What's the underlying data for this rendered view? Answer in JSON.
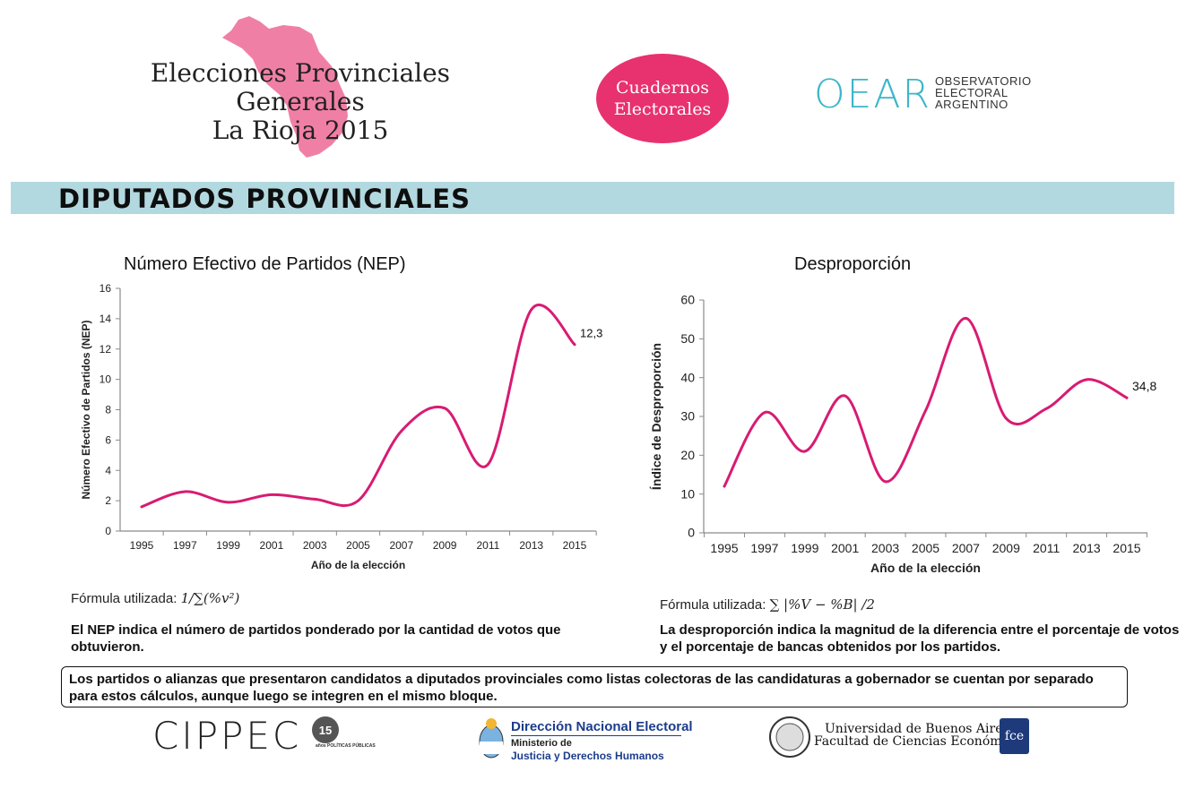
{
  "header": {
    "title_line1": "Elecciones Provinciales Generales",
    "title_line2": "La Rioja 2015",
    "badge_line1": "Cuadernos",
    "badge_line2": "Electorales",
    "oear_mark": "OEAR",
    "oear_line1": "OBSERVATORIO",
    "oear_line2": "ELECTORAL",
    "oear_line3": "ARGENTINO"
  },
  "section_title": "DIPUTADOS PROVINCIALES",
  "chart_data": [
    {
      "type": "line",
      "title": "Número Efectivo de Partidos (NEP)",
      "xlabel": "Año de la elección",
      "ylabel": "Número Efectivo de Partidos (NEP)",
      "ylim": [
        0,
        16
      ],
      "yticks": [
        0,
        2,
        4,
        6,
        8,
        10,
        12,
        14,
        16
      ],
      "x": [
        "1995",
        "1997",
        "1999",
        "2001",
        "2003",
        "2005",
        "2007",
        "2009",
        "2011",
        "2013",
        "2015"
      ],
      "series": [
        {
          "name": "NEP",
          "values": [
            1.6,
            2.6,
            1.9,
            2.4,
            2.1,
            2.0,
            6.6,
            8.1,
            4.4,
            14.6,
            12.3
          ]
        }
      ],
      "last_label": "12,3",
      "color": "#d81b72"
    },
    {
      "type": "line",
      "title": "Desproporción",
      "xlabel": "Año de la elección",
      "ylabel": "Índice de Desproporción",
      "ylim": [
        0,
        60
      ],
      "yticks": [
        0,
        10,
        20,
        30,
        40,
        50,
        60
      ],
      "x": [
        "1995",
        "1997",
        "1999",
        "2001",
        "2003",
        "2005",
        "2007",
        "2009",
        "2011",
        "2013",
        "2015"
      ],
      "series": [
        {
          "name": "Desproporción",
          "values": [
            12.0,
            31.0,
            21.0,
            35.3,
            13.2,
            31.5,
            55.3,
            29.5,
            32.0,
            39.5,
            34.8
          ]
        }
      ],
      "last_label": "34,8",
      "color": "#d81b72"
    }
  ],
  "left_panel": {
    "formula_label": "Fórmula utilizada:",
    "formula": "1/∑(%v²)",
    "description": "El NEP indica el número de partidos ponderado por la cantidad de votos que obtuvieron."
  },
  "right_panel": {
    "formula_label": "Fórmula utilizada:",
    "formula": "∑ |%V − %B| /2",
    "description": "La desproporción indica la magnitud de la diferencia entre el porcentaje de votos y el porcentaje de bancas obtenidos por los partidos."
  },
  "note": "Los partidos o alianzas que presentaron candidatos a diputados provinciales como listas colectoras de las candidaturas a gobernador se cuentan por separado para estos cálculos, aunque luego se integren en el mismo bloque.",
  "footer": {
    "cippec": "CIPPEC",
    "cippec_badge": "15",
    "cippec_sub": "años POLÍTICAS PÚBLICAS",
    "dne_title": "Dirección Nacional Electoral",
    "dne_sub1": "Ministerio de",
    "dne_sub2": "Justicia y Derechos Humanos",
    "uba_line1": "Universidad de Buenos Aires",
    "uba_line2": "Facultad de Ciencias Económicas",
    "fce": "fce"
  },
  "colors": {
    "accent": "#e8316f",
    "bar": "#b3d9e0",
    "oear": "#3cb6c8",
    "dne": "#1b3c8c"
  }
}
